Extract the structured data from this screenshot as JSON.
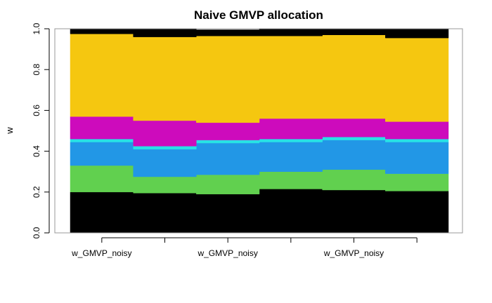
{
  "chart_data": {
    "type": "area",
    "title": "Naive GMVP allocation",
    "xlabel": "",
    "ylabel": "w",
    "ylim": [
      0,
      1
    ],
    "yticks": [
      "0.0",
      "0.2",
      "0.4",
      "0.6",
      "0.8",
      "1.0"
    ],
    "xticks": [
      "w_GMVP_noisy",
      "",
      "w_GMVP_noisy",
      "",
      "w_GMVP_noisy",
      ""
    ],
    "grid": false,
    "layers": [
      {
        "color": "#000000",
        "values": [
          0.2,
          0.195,
          0.19,
          0.215,
          0.21,
          0.205
        ]
      },
      {
        "color": "#61d04f",
        "values": [
          0.13,
          0.08,
          0.095,
          0.085,
          0.1,
          0.085
        ]
      },
      {
        "color": "#2297e6",
        "values": [
          0.115,
          0.135,
          0.155,
          0.145,
          0.145,
          0.155
        ]
      },
      {
        "color": "#28e2e5",
        "values": [
          0.015,
          0.015,
          0.015,
          0.015,
          0.015,
          0.015
        ]
      },
      {
        "color": "#cd0bbc",
        "values": [
          0.11,
          0.125,
          0.085,
          0.1,
          0.09,
          0.085
        ]
      },
      {
        "color": "#f5c710",
        "values": [
          0.405,
          0.41,
          0.425,
          0.405,
          0.41,
          0.41
        ]
      },
      {
        "color": "#000000",
        "values": [
          0.025,
          0.04,
          0.03,
          0.035,
          0.03,
          0.045
        ]
      }
    ]
  }
}
